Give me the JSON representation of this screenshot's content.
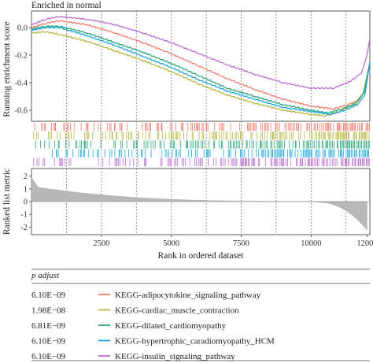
{
  "chart_data": {
    "type": "line",
    "title": "Enriched in normal",
    "xlabel": "Rank in ordered dataset",
    "es_ylabel": "Running enrichment score",
    "metric_ylabel": "Ranked list metric",
    "xlim": [
      0,
      12100
    ],
    "es_ylim": [
      -0.68,
      0.12
    ],
    "metric_ylim": [
      -2.6,
      2.6
    ],
    "x_ticks": [
      "2500",
      "5000",
      "7500",
      "10000",
      "12000"
    ],
    "x_tick_values": [
      2500,
      5000,
      7500,
      10000,
      12000
    ],
    "es_ticks": [
      "0.0",
      "-0.2",
      "-0.4",
      "-0.6"
    ],
    "es_tick_values": [
      0.0,
      -0.2,
      -0.4,
      -0.6
    ],
    "metric_ticks": [
      "2",
      "1",
      "0",
      "-1",
      "-2"
    ],
    "metric_tick_values": [
      2,
      1,
      0,
      -1,
      -2
    ],
    "vlines": [
      1250,
      2500,
      3750,
      5000,
      6250,
      7500,
      8750,
      10000,
      11250
    ],
    "series": [
      {
        "name": "KEGG-adipocytokine_signaling_pathway",
        "color": "#f07a6e",
        "x": [
          0,
          500,
          1000,
          2000,
          3000,
          4000,
          5000,
          6000,
          7000,
          8000,
          9000,
          10000,
          10800,
          11300,
          11700,
          11950,
          12100
        ],
        "y": [
          0.0,
          0.03,
          0.05,
          0.02,
          -0.04,
          -0.11,
          -0.19,
          -0.28,
          -0.37,
          -0.45,
          -0.52,
          -0.57,
          -0.59,
          -0.56,
          -0.53,
          -0.45,
          -0.25
        ]
      },
      {
        "name": "KEGG-cardiac_muscle_contraction",
        "color": "#b5b540",
        "x": [
          0,
          500,
          1000,
          2000,
          3000,
          4000,
          5000,
          6000,
          7000,
          8000,
          9000,
          10000,
          10500,
          11000,
          11500,
          11850,
          12100
        ],
        "y": [
          -0.04,
          -0.03,
          -0.05,
          -0.1,
          -0.17,
          -0.24,
          -0.32,
          -0.41,
          -0.49,
          -0.55,
          -0.6,
          -0.63,
          -0.64,
          -0.61,
          -0.56,
          -0.48,
          -0.26
        ]
      },
      {
        "name": "KEGG-dilated_cardiomyopathy",
        "color": "#2aa67a",
        "x": [
          0,
          500,
          1000,
          2000,
          3000,
          4000,
          5000,
          6000,
          7000,
          8000,
          9000,
          10000,
          10600,
          11100,
          11600,
          11900,
          12100
        ],
        "y": [
          -0.01,
          0.01,
          0.01,
          -0.04,
          -0.11,
          -0.18,
          -0.26,
          -0.35,
          -0.44,
          -0.5,
          -0.56,
          -0.6,
          -0.62,
          -0.59,
          -0.55,
          -0.47,
          -0.25
        ]
      },
      {
        "name": "KEGG-hypertrophic_caradiomyopathy_HCM",
        "color": "#1aa7d9",
        "x": [
          0,
          500,
          1000,
          2000,
          3000,
          4000,
          5000,
          6000,
          7000,
          8000,
          9000,
          10000,
          10700,
          11200,
          11650,
          11920,
          12100
        ],
        "y": [
          -0.02,
          0.0,
          0.0,
          -0.06,
          -0.13,
          -0.21,
          -0.29,
          -0.38,
          -0.46,
          -0.52,
          -0.58,
          -0.61,
          -0.63,
          -0.6,
          -0.56,
          -0.49,
          -0.25
        ]
      },
      {
        "name": "KEGG-insulin_signaling_pathway",
        "color": "#b96fd0",
        "x": [
          0,
          500,
          1000,
          2000,
          3000,
          4000,
          5000,
          6000,
          7000,
          8000,
          9000,
          10000,
          10800,
          11400,
          11800,
          12000,
          12100
        ],
        "y": [
          0.02,
          0.06,
          0.08,
          0.06,
          0.02,
          -0.04,
          -0.11,
          -0.19,
          -0.27,
          -0.34,
          -0.4,
          -0.44,
          -0.44,
          -0.39,
          -0.33,
          -0.2,
          -0.08
        ]
      }
    ],
    "table": {
      "header": "p adjust",
      "rows": [
        {
          "p_adjust": "6.10E−09",
          "pathway": "KEGG-adipocytokine_signaling_pathway",
          "color": "#f07a6e"
        },
        {
          "p_adjust": "1.98E−08",
          "pathway": "KEGG-cardiac_muscle_contraction",
          "color": "#b5b540"
        },
        {
          "p_adjust": "6.81E−09",
          "pathway": "KEGG-dilated_cardiomyopathy",
          "color": "#2aa67a"
        },
        {
          "p_adjust": "6.10E−09",
          "pathway": "KEGG-hypertrophic_caradiomyopathy_HCM",
          "color": "#1aa7d9"
        },
        {
          "p_adjust": "6.10E−09",
          "pathway": "KEGG-insulin_signaling_pathway",
          "color": "#b96fd0"
        }
      ]
    },
    "grid": false,
    "legend": "bottom table"
  }
}
